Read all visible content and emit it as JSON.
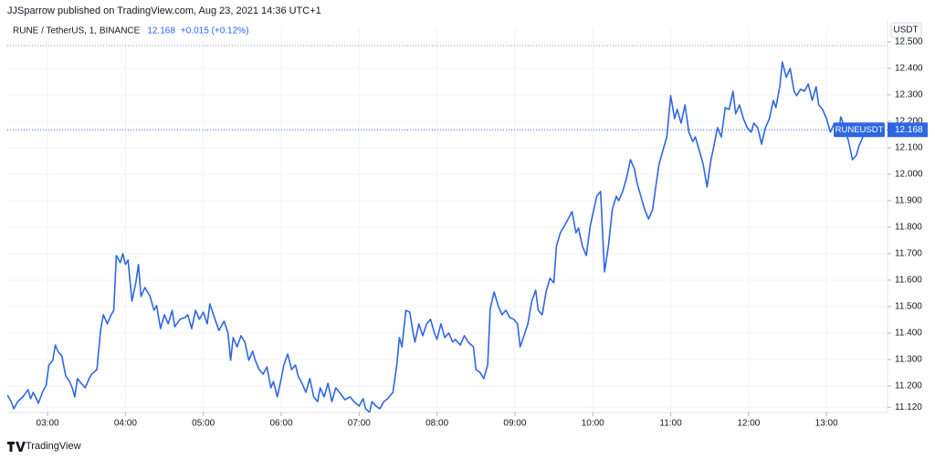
{
  "header": "JJSparrow published on TradingView.com, Aug 23, 2021 14:36 UTC+1",
  "footer": "TradingView",
  "chart_data": {
    "type": "line",
    "legend": {
      "symbol": "RUNE / TetherUS, 1, BINANCE",
      "price": "12.168",
      "change": "+0.015 (+0.12%)"
    },
    "y_axis_unit": "USDT",
    "x": [
      149,
      152,
      154,
      157,
      161,
      165,
      167,
      169,
      173,
      176,
      179,
      181,
      184,
      186,
      188,
      191,
      194,
      197,
      199,
      201,
      203,
      206,
      209,
      212,
      214,
      218,
      221,
      223,
      226,
      229,
      231,
      233,
      236,
      238,
      240,
      242,
      245,
      248,
      250,
      252,
      255,
      257,
      259,
      262,
      264,
      267,
      270,
      273,
      276,
      278,
      282,
      286,
      288,
      291,
      294,
      297,
      300,
      303,
      305,
      309,
      312,
      316,
      319,
      321,
      323,
      326,
      329,
      332,
      335,
      338,
      340,
      343,
      346,
      349,
      352,
      354,
      357,
      360,
      362,
      365,
      368,
      371,
      373,
      376,
      379,
      382,
      385,
      388,
      390,
      393,
      396,
      399,
      402,
      406,
      409,
      413,
      416,
      420,
      423,
      425,
      428,
      430,
      433,
      436,
      439,
      442,
      446,
      449,
      451,
      453,
      456,
      459,
      461,
      463,
      466,
      469,
      472,
      475,
      478,
      480,
      483,
      486,
      489,
      492,
      494,
      498,
      501,
      504,
      508,
      510,
      513,
      516,
      519,
      521,
      524,
      527,
      530,
      533,
      536,
      539,
      542,
      544,
      547,
      550,
      553,
      556,
      558,
      561,
      564,
      567,
      570,
      572,
      575,
      578,
      581,
      584,
      587,
      589,
      592,
      595,
      598,
      601,
      603,
      606,
      609,
      612,
      615,
      618,
      620,
      623,
      626,
      629,
      632,
      634,
      637,
      640,
      643,
      646,
      648,
      651,
      654,
      657,
      660,
      663,
      665,
      668,
      671,
      674,
      677,
      679,
      682,
      685,
      688,
      691,
      693,
      696,
      699,
      702,
      705,
      708,
      710,
      713,
      716,
      719,
      722,
      724,
      727,
      730,
      733,
      736,
      739,
      741,
      744,
      746,
      749,
      752,
      755,
      757,
      760,
      763,
      766,
      769,
      772,
      774,
      777,
      780,
      783,
      786,
      789,
      791,
      794,
      797,
      800,
      803,
      805,
      808,
      811,
      814
    ],
    "series": [
      {
        "name": "RUNEUSDT",
        "color": "#2f67e0",
        "last_label": "12.168",
        "values": [
          11.166,
          11.141,
          11.114,
          11.141,
          11.159,
          11.186,
          11.152,
          11.176,
          11.135,
          11.176,
          11.204,
          11.279,
          11.297,
          11.355,
          11.331,
          11.314,
          11.238,
          11.217,
          11.193,
          11.159,
          11.228,
          11.21,
          11.193,
          11.228,
          11.245,
          11.262,
          11.417,
          11.469,
          11.435,
          11.469,
          11.486,
          11.693,
          11.666,
          11.7,
          11.659,
          11.676,
          11.521,
          11.59,
          11.659,
          11.538,
          11.572,
          11.555,
          11.538,
          11.486,
          11.504,
          11.417,
          11.469,
          11.435,
          11.486,
          11.424,
          11.452,
          11.459,
          11.469,
          11.417,
          11.486,
          11.452,
          11.479,
          11.435,
          11.51,
          11.452,
          11.41,
          11.445,
          11.4,
          11.297,
          11.383,
          11.348,
          11.39,
          11.366,
          11.297,
          11.331,
          11.297,
          11.262,
          11.245,
          11.272,
          11.193,
          11.217,
          11.159,
          11.228,
          11.279,
          11.321,
          11.262,
          11.279,
          11.238,
          11.21,
          11.176,
          11.228,
          11.159,
          11.141,
          11.193,
          11.159,
          11.21,
          11.141,
          11.193,
          11.169,
          11.148,
          11.159,
          11.141,
          11.124,
          11.152,
          11.114,
          11.1,
          11.141,
          11.124,
          11.114,
          11.141,
          11.152,
          11.176,
          11.279,
          11.383,
          11.348,
          11.486,
          11.479,
          11.417,
          11.366,
          11.435,
          11.39,
          11.435,
          11.452,
          11.4,
          11.376,
          11.435,
          11.383,
          11.4,
          11.366,
          11.376,
          11.355,
          11.39,
          11.366,
          11.348,
          11.262,
          11.252,
          11.228,
          11.279,
          11.493,
          11.555,
          11.504,
          11.469,
          11.486,
          11.459,
          11.452,
          11.435,
          11.348,
          11.39,
          11.435,
          11.521,
          11.562,
          11.486,
          11.469,
          11.555,
          11.607,
          11.59,
          11.728,
          11.779,
          11.804,
          11.831,
          11.859,
          11.779,
          11.797,
          11.728,
          11.693,
          11.804,
          11.872,
          11.917,
          11.935,
          11.631,
          11.728,
          11.866,
          11.917,
          11.9,
          11.935,
          11.986,
          12.055,
          12.021,
          11.969,
          11.917,
          11.866,
          11.831,
          11.866,
          11.935,
          12.038,
          12.09,
          12.141,
          12.297,
          12.21,
          12.245,
          12.193,
          12.262,
          12.159,
          12.124,
          12.141,
          12.09,
          12.038,
          11.952,
          12.055,
          12.1,
          12.176,
          12.141,
          12.252,
          12.245,
          12.314,
          12.228,
          12.262,
          12.21,
          12.176,
          12.159,
          12.193,
          12.176,
          12.114,
          12.176,
          12.21,
          12.279,
          12.252,
          12.331,
          12.424,
          12.366,
          12.4,
          12.314,
          12.297,
          12.321,
          12.314,
          12.341,
          12.279,
          12.331,
          12.262,
          12.245,
          12.21,
          12.159,
          12.193,
          12.148,
          12.217,
          12.176,
          12.124,
          12.055,
          12.072,
          12.107,
          12.141,
          12.166,
          12.168
        ]
      }
    ],
    "xlim": [
      149,
      827
    ],
    "xticks": [
      {
        "value": 180,
        "label": "03:00"
      },
      {
        "value": 240,
        "label": "04:00"
      },
      {
        "value": 300,
        "label": "05:00"
      },
      {
        "value": 360,
        "label": "06:00"
      },
      {
        "value": 420,
        "label": "07:00"
      },
      {
        "value": 480,
        "label": "08:00"
      },
      {
        "value": 540,
        "label": "09:00"
      },
      {
        "value": 600,
        "label": "10:00"
      },
      {
        "value": 660,
        "label": "11:00"
      },
      {
        "value": 720,
        "label": "12:00"
      },
      {
        "value": 780,
        "label": "13:00"
      }
    ],
    "ylim": [
      11.1,
      12.555
    ],
    "yticks": [
      {
        "value": 11.12,
        "label": "11.120"
      },
      {
        "value": 11.2,
        "label": "11.200"
      },
      {
        "value": 11.3,
        "label": "11.300"
      },
      {
        "value": 11.4,
        "label": "11.400"
      },
      {
        "value": 11.5,
        "label": "11.500"
      },
      {
        "value": 11.6,
        "label": "11.600"
      },
      {
        "value": 11.7,
        "label": "11.700"
      },
      {
        "value": 11.8,
        "label": "11.800"
      },
      {
        "value": 11.9,
        "label": "11.900"
      },
      {
        "value": 12,
        "label": "12.000"
      },
      {
        "value": 12.1,
        "label": "12.100"
      },
      {
        "value": 12.2,
        "label": "12.200"
      },
      {
        "value": 12.3,
        "label": "12.300"
      },
      {
        "value": 12.4,
        "label": "12.400"
      },
      {
        "value": 12.5,
        "label": "12.500"
      }
    ],
    "grid": true
  }
}
